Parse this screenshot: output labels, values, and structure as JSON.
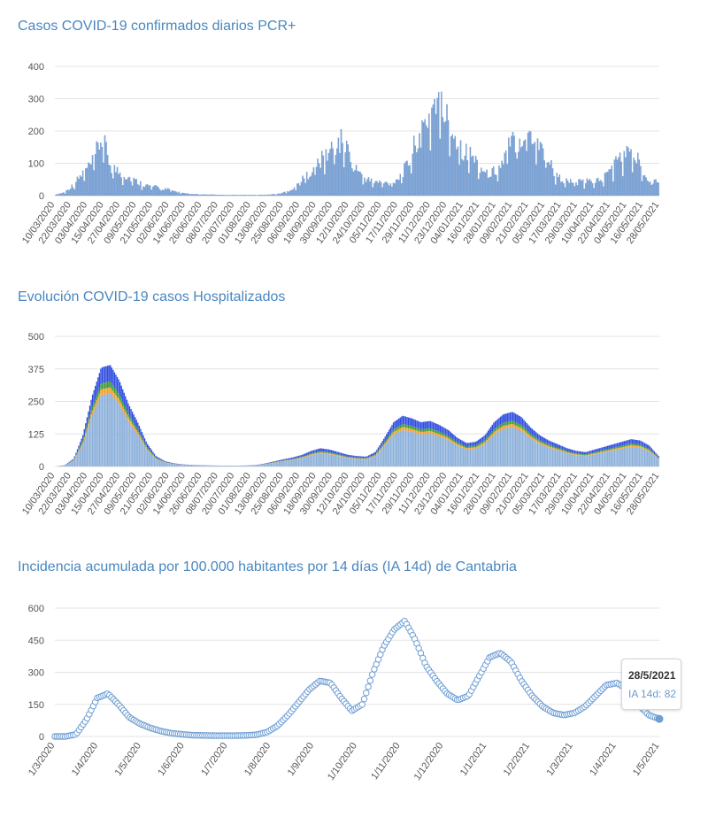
{
  "colors": {
    "title": "#4a87c0",
    "bar": "#7ba3d6",
    "bar_edge": "#5a86c0",
    "hosp_blue": "#2e4de0",
    "hosp_green": "#3a9a3a",
    "hosp_orange": "#f0a030",
    "hosp_base": "#8cb0da",
    "ia_dot": "#6e9ed4",
    "grid": "#e3e3e3"
  },
  "charts": [
    {
      "title": "Casos COVID-19 confirmados diarios PCR+",
      "chart_data": {
        "type": "bar",
        "title": "Casos COVID-19 confirmados diarios PCR+",
        "ylim": [
          0,
          400
        ],
        "yticks": [
          "0",
          "100",
          "200",
          "300",
          "400"
        ],
        "xticks": [
          "10/03/2020",
          "22/03/2020",
          "03/04/2020",
          "15/04/2020",
          "27/04/2020",
          "09/05/2020",
          "21/05/2020",
          "02/06/2020",
          "14/06/2020",
          "26/06/2020",
          "08/07/2020",
          "20/07/2020",
          "01/08/2020",
          "13/08/2020",
          "25/08/2020",
          "06/09/2020",
          "18/09/2020",
          "30/09/2020",
          "12/10/2020",
          "24/10/2020",
          "05/11/2020",
          "17/11/2020",
          "29/11/2020",
          "11/12/2020",
          "23/12/2020",
          "04/01/2021",
          "16/01/2021",
          "28/01/2021",
          "09/02/2021",
          "21/02/2021",
          "05/03/2021",
          "17/03/2021",
          "29/03/2021",
          "10/04/2021",
          "22/04/2021",
          "04/05/2021",
          "16/05/2021",
          "28/05/2021"
        ],
        "series": [
          {
            "values": [
              3,
              10,
              35,
              70,
              100,
              180,
              90,
              70,
              55,
              40,
              30,
              25,
              20,
              12,
              6,
              4,
              3,
              3,
              2,
              2,
              2,
              2,
              2,
              3,
              5,
              12,
              30,
              60,
              90,
              120,
              150,
              170,
              110,
              60,
              45,
              40,
              38,
              55,
              95,
              180,
              230,
              300,
              250,
              190,
              140,
              120,
              80,
              70,
              90,
              160,
              180,
              200,
              170,
              120,
              60,
              45,
              40,
              42,
              45,
              50,
              90,
              120,
              135,
              100,
              50,
              45
            ]
          }
        ]
      }
    },
    {
      "title": "Evolución COVID-19 casos  Hospitalizados",
      "chart_data": {
        "type": "bar",
        "title": "Evolución COVID-19 casos  Hospitalizados",
        "ylim": [
          0,
          500
        ],
        "yticks": [
          "0",
          "125",
          "250",
          "375",
          "500"
        ],
        "xticks": [
          "10/03/2020",
          "22/03/2020",
          "03/04/2020",
          "15/04/2020",
          "27/04/2020",
          "09/05/2020",
          "21/05/2020",
          "02/06/2020",
          "14/06/2020",
          "26/06/2020",
          "08/07/2020",
          "20/07/2020",
          "01/08/2020",
          "13/08/2020",
          "25/08/2020",
          "06/09/2020",
          "18/09/2020",
          "30/09/2020",
          "12/10/2020",
          "24/10/2020",
          "05/11/2020",
          "17/11/2020",
          "29/11/2020",
          "11/12/2020",
          "23/12/2020",
          "04/01/2021",
          "16/01/2021",
          "28/01/2021",
          "09/02/2021",
          "21/02/2021",
          "05/03/2021",
          "17/03/2021",
          "29/03/2021",
          "10/04/2021",
          "22/04/2021",
          "04/05/2021",
          "16/05/2021",
          "28/05/2021"
        ],
        "series": [
          {
            "values": [
              0,
              5,
              30,
              120,
              270,
              380,
              390,
              330,
              240,
              170,
              90,
              40,
              20,
              12,
              8,
              6,
              5,
              4,
              3,
              3,
              3,
              4,
              6,
              12,
              20,
              28,
              35,
              45,
              60,
              70,
              65,
              55,
              45,
              40,
              38,
              55,
              110,
              170,
              195,
              185,
              170,
              175,
              160,
              140,
              110,
              90,
              95,
              120,
              170,
              200,
              210,
              190,
              150,
              120,
              100,
              85,
              70,
              60,
              55,
              65,
              75,
              85,
              95,
              105,
              100,
              80,
              40
            ]
          }
        ]
      }
    },
    {
      "title": "Incidencia acumulada por 100.000 habitantes por 14 días (IA 14d) de Cantabria",
      "chart_data": {
        "type": "scatter",
        "title": "Incidencia acumulada por 100.000 habitantes por 14 días (IA 14d) de Cantabria",
        "ylim": [
          0,
          600
        ],
        "yticks": [
          "0",
          "150",
          "300",
          "450",
          "600"
        ],
        "xticks": [
          "1/3/2020",
          "1/4/2020",
          "1/5/2020",
          "1/6/2020",
          "1/7/2020",
          "1/8/2020",
          "1/9/2020",
          "1/10/2020",
          "1/11/2020",
          "1/12/2020",
          "1/1/2021",
          "1/2/2021",
          "1/3/2021",
          "1/4/2021",
          "1/5/2021"
        ],
        "series": [
          {
            "values": [
              0,
              0,
              10,
              80,
              180,
              200,
              150,
              90,
              60,
              40,
              25,
              15,
              10,
              6,
              5,
              4,
              4,
              4,
              5,
              8,
              20,
              50,
              100,
              160,
              220,
              260,
              250,
              180,
              120,
              150,
              300,
              420,
              500,
              540,
              450,
              330,
              260,
              200,
              170,
              190,
              280,
              370,
              390,
              350,
              260,
              190,
              140,
              110,
              100,
              110,
              140,
              190,
              240,
              250,
              220,
              150,
              100,
              82
            ]
          }
        ]
      }
    }
  ],
  "tooltip": {
    "date": "28/5/2021",
    "value": "IA 14d: 82"
  }
}
